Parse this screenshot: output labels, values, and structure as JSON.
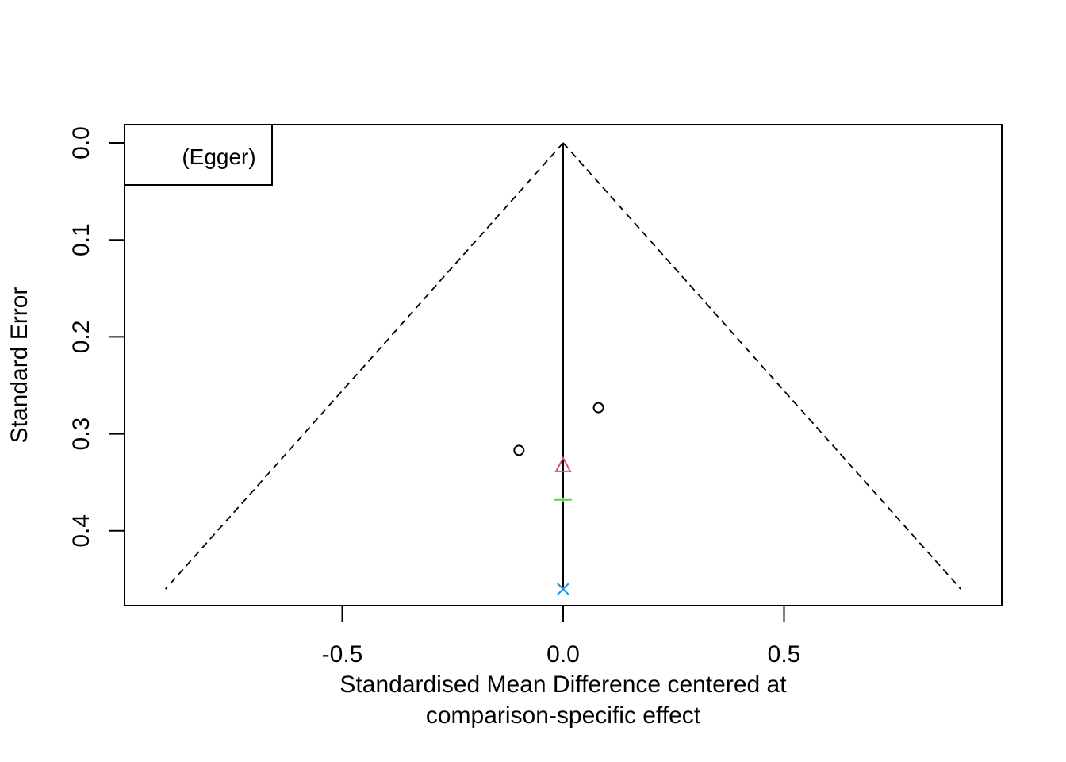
{
  "chart_data": {
    "type": "scatter",
    "subtype": "funnel",
    "title": "",
    "xlabel_lines": [
      "Standardised Mean Difference centered at",
      "comparison-specific effect"
    ],
    "ylabel": "Standard Error",
    "xlim": [
      -0.9,
      0.9
    ],
    "ylim": [
      0.0,
      0.46
    ],
    "y_reversed": true,
    "x_ticks": [
      -0.5,
      0.0,
      0.5
    ],
    "x_tick_labels": [
      "-0.5",
      "0.0",
      "0.5"
    ],
    "y_ticks": [
      0.0,
      0.1,
      0.2,
      0.3,
      0.4
    ],
    "y_tick_labels": [
      "0.0",
      "0.1",
      "0.2",
      "0.3",
      "0.4"
    ],
    "funnel": {
      "apex": [
        0.0,
        0.0
      ],
      "left_bottom": [
        -0.9,
        0.46
      ],
      "right_bottom": [
        0.9,
        0.46
      ],
      "line_style": "dashed"
    },
    "center_line": {
      "x": 0.0,
      "from_y": 0.0,
      "to_y": 0.46
    },
    "points": [
      {
        "x": 0.08,
        "y": 0.273,
        "symbol": "circle",
        "color": "#000000"
      },
      {
        "x": -0.1,
        "y": 0.317,
        "symbol": "circle",
        "color": "#000000"
      },
      {
        "x": 0.0,
        "y": 0.333,
        "symbol": "triangle",
        "color": "#DF536B"
      },
      {
        "x": 0.0,
        "y": 0.368,
        "symbol": "plus",
        "color": "#61D04F"
      },
      {
        "x": 0.0,
        "y": 0.46,
        "symbol": "cross",
        "color": "#2297E6"
      }
    ],
    "legend": {
      "position": "top-left",
      "text": "(Egger)"
    },
    "grid": false
  }
}
